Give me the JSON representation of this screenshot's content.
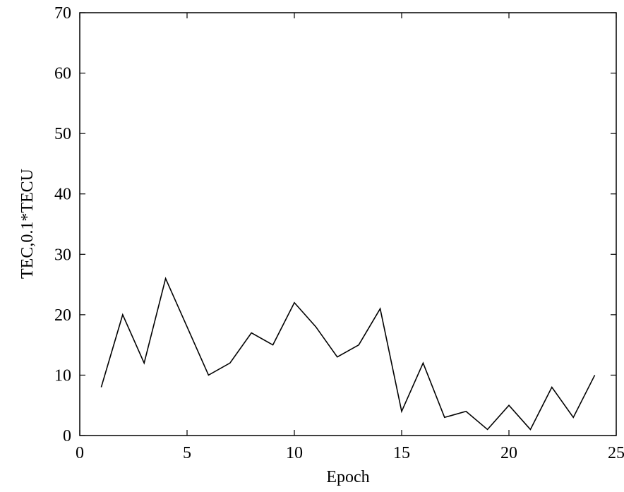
{
  "chart_data": {
    "type": "line",
    "x_label": "Epoch",
    "y_label": "TEC,0.1*TECU",
    "series": [
      {
        "color": "#000000",
        "x": [
          1,
          2,
          3,
          4,
          5,
          6,
          7,
          8,
          9,
          10,
          11,
          12,
          13,
          14,
          15,
          16,
          17,
          18,
          19,
          20,
          21,
          22,
          23,
          24
        ],
        "values": [
          8,
          20,
          12,
          26,
          18,
          10,
          12,
          17,
          15,
          22,
          18,
          13,
          15,
          21,
          4,
          12,
          3,
          4,
          1,
          5,
          1,
          8,
          3,
          10
        ]
      }
    ],
    "xlim": [
      0,
      25
    ],
    "xticks": [
      0,
      5,
      10,
      15,
      20,
      25
    ],
    "ylim": [
      0,
      70
    ],
    "yticks": [
      0,
      10,
      20,
      30,
      40,
      50,
      60,
      70
    ],
    "grid": false
  }
}
